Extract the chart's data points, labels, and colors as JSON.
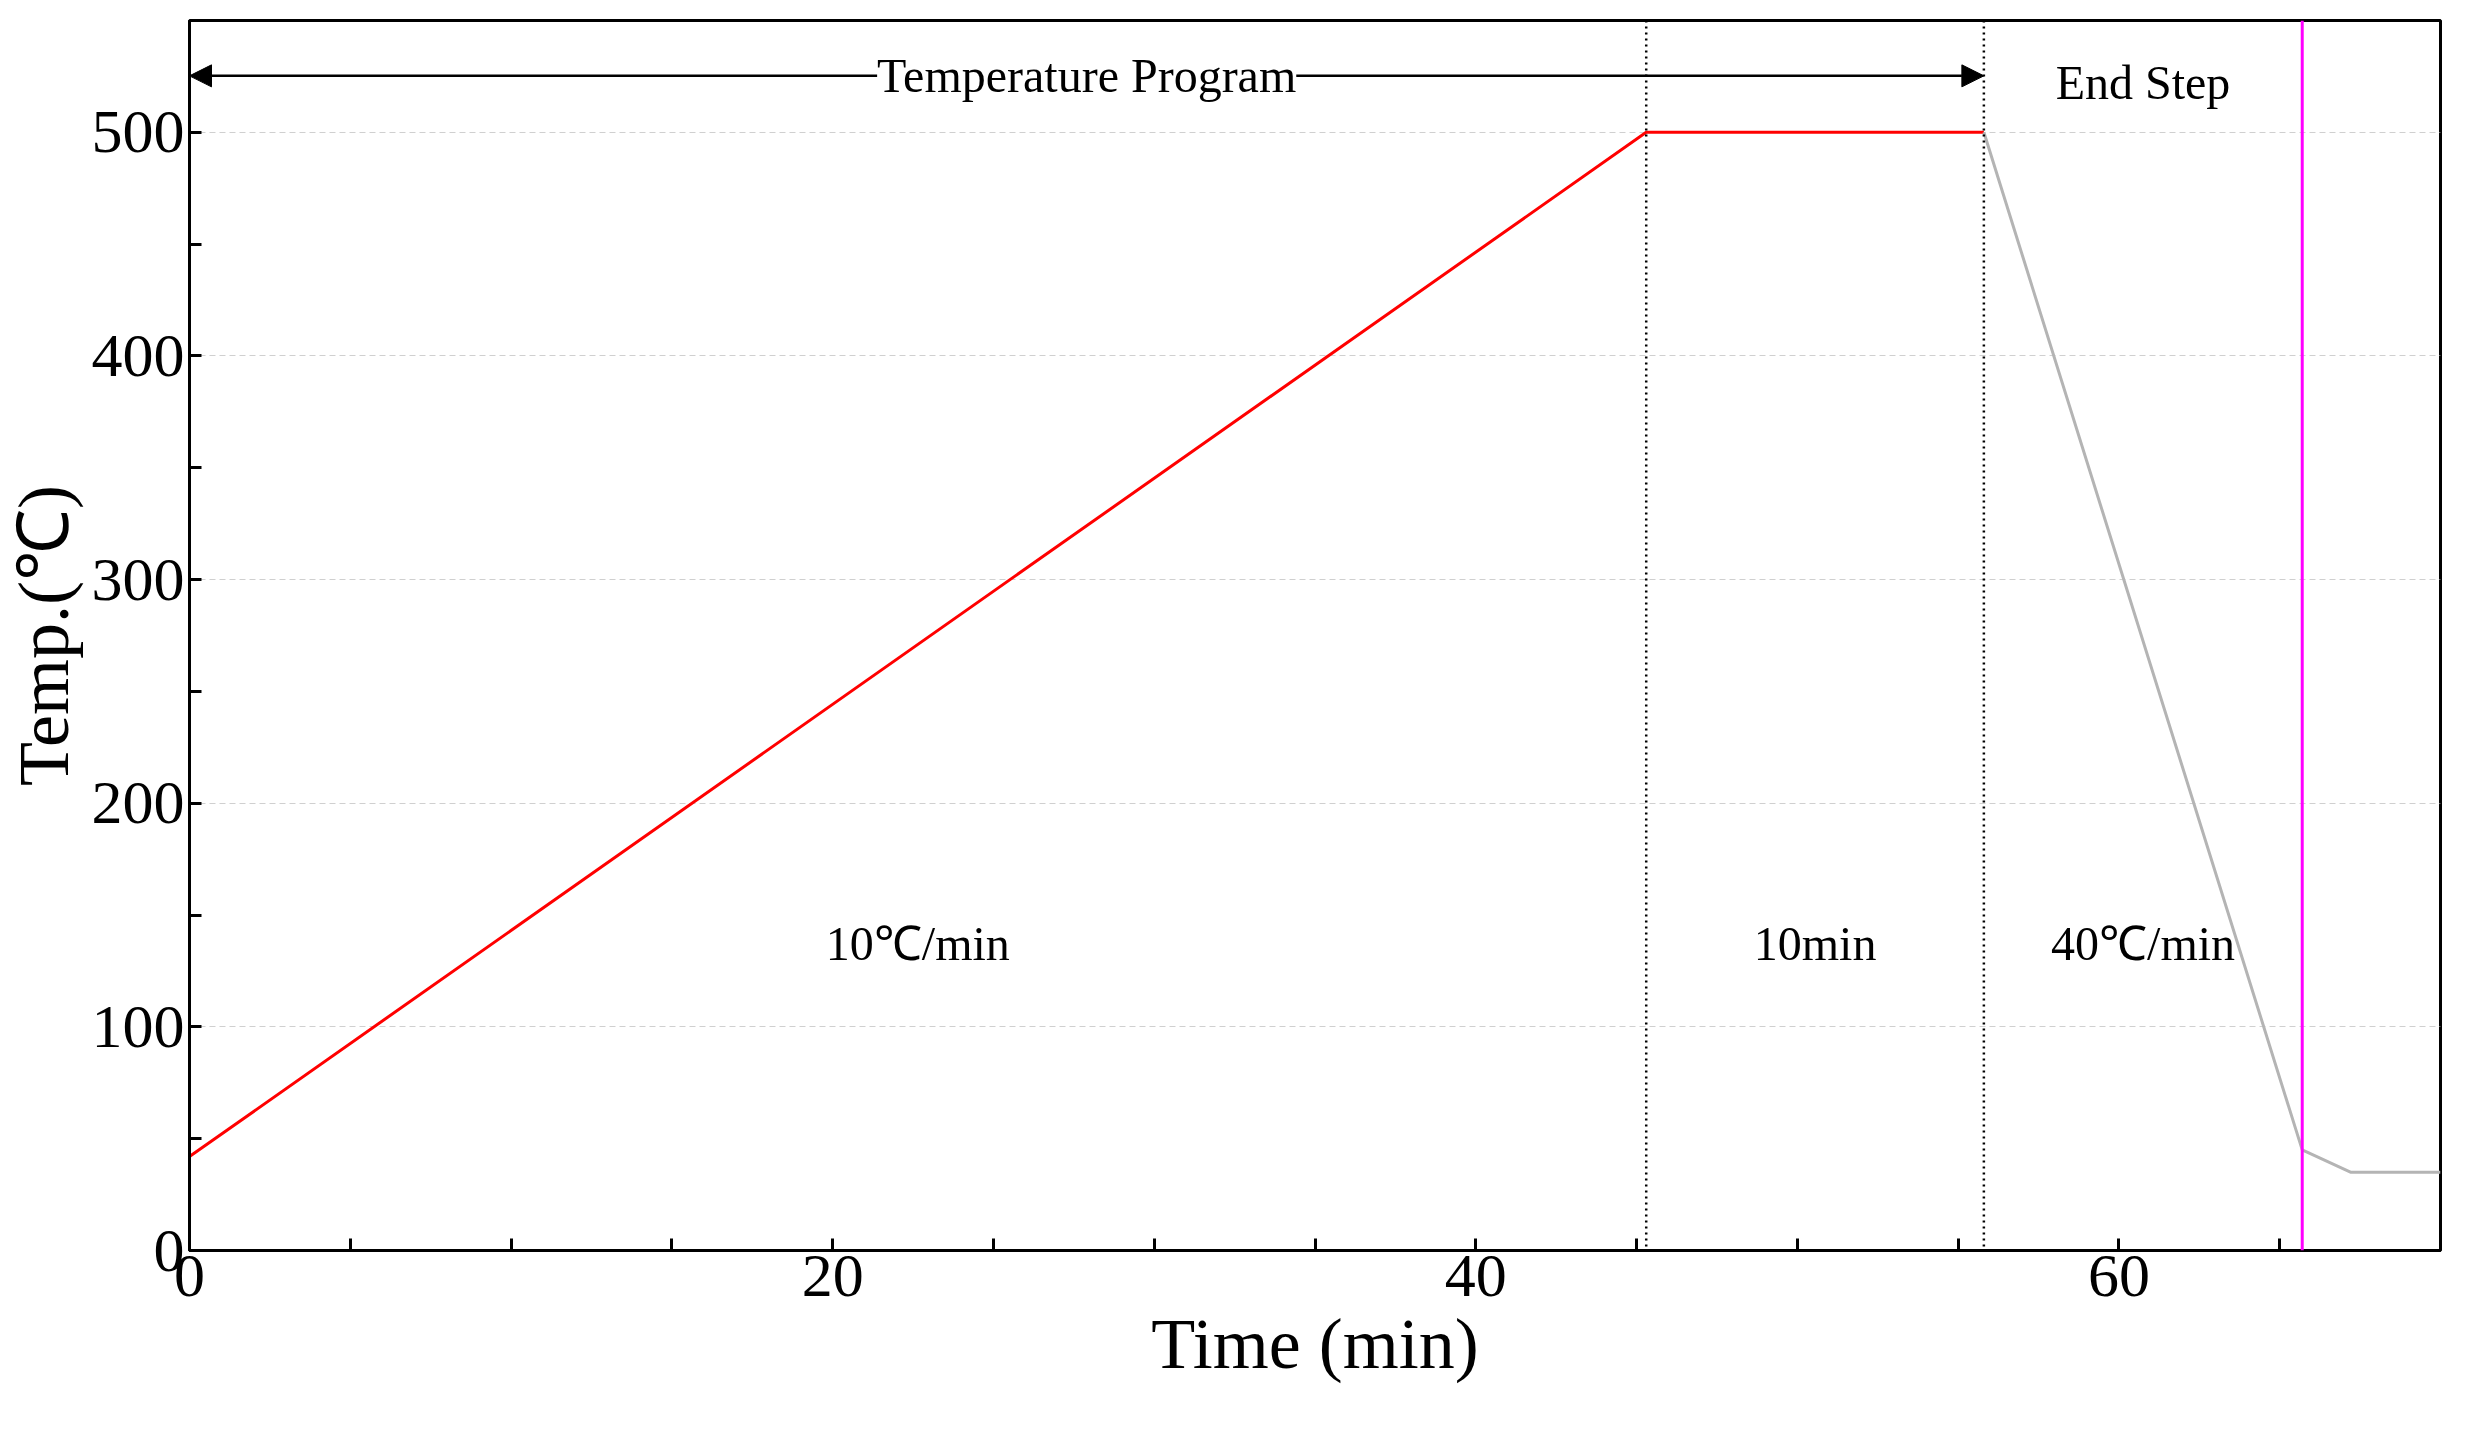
{
  "chart_data": {
    "type": "line",
    "xlabel": "Time (min)",
    "ylabel": "Temp.(℃)",
    "xlim": [
      0,
      70
    ],
    "ylim": [
      0,
      550
    ],
    "xticks": [
      0,
      {
        "value": 5,
        "label": null
      },
      {
        "value": 10,
        "label": null
      },
      {
        "value": 15,
        "label": null
      },
      20,
      {
        "value": 25,
        "label": null
      },
      {
        "value": 30,
        "label": null
      },
      {
        "value": 35,
        "label": null
      },
      40,
      {
        "value": 45,
        "label": null
      },
      {
        "value": 50,
        "label": null
      },
      {
        "value": 55,
        "label": null
      },
      60,
      {
        "value": 65,
        "label": null
      }
    ],
    "yticks": [
      0,
      {
        "value": 50,
        "label": null
      },
      100,
      {
        "value": 150,
        "label": null
      },
      200,
      {
        "value": 250,
        "label": null
      },
      300,
      {
        "value": 350,
        "label": null
      },
      400,
      {
        "value": 450,
        "label": null
      },
      500
    ],
    "grid": "y",
    "marker": "none",
    "line_style": "solid",
    "series": [
      {
        "color": "#ff0000",
        "x": [
          0,
          45.3,
          55.8
        ],
        "values": [
          42,
          500,
          500
        ]
      },
      {
        "color": "#b4b4b4",
        "x": [
          55.8,
          65.7,
          67.2,
          70
        ],
        "values": [
          500,
          45,
          35,
          35
        ]
      }
    ],
    "ref_lines": [
      {
        "axis": "x",
        "value": 45.3,
        "color": "#000000",
        "line_style": "dotted"
      },
      {
        "axis": "x",
        "value": 55.8,
        "color": "#000000",
        "line_style": "dotted"
      },
      {
        "axis": "x",
        "value": 65.7,
        "color": "#ff00ff",
        "line_style": "solid"
      }
    ],
    "annotations": [
      "Temperature Program",
      "End Step",
      "10℃/min",
      "10min",
      "40℃/min"
    ]
  }
}
